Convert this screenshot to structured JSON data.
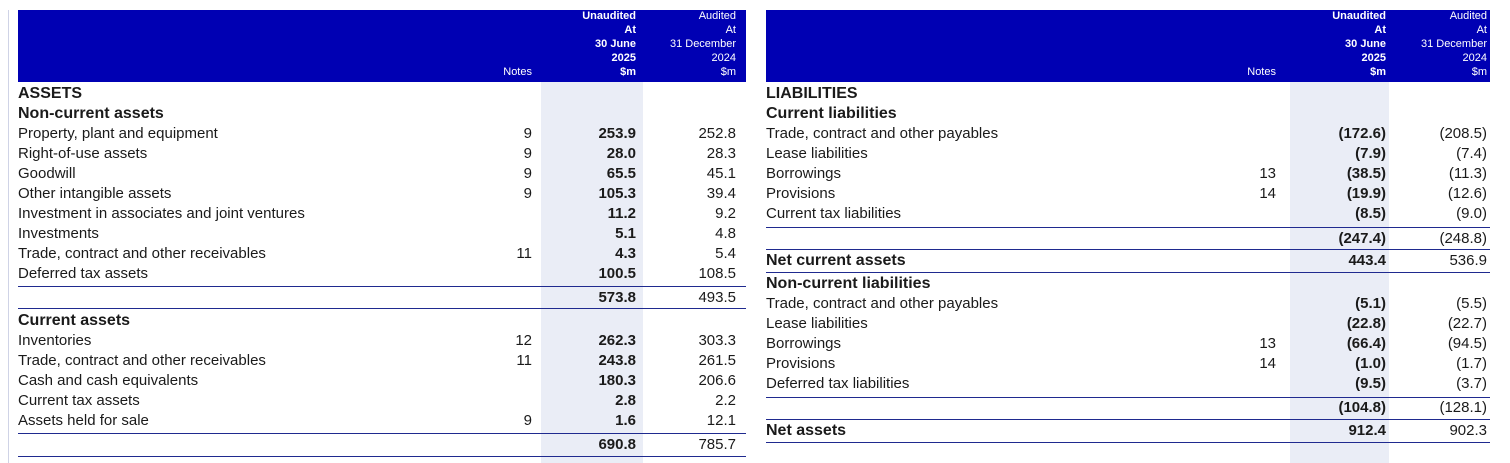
{
  "left": {
    "header": {
      "notes": "Notes",
      "current": "Unaudited\nAt\n30 June\n2025\n$m",
      "prior": "Audited\nAt\n31 December\n2024\n$m"
    },
    "section_title": "ASSETS",
    "non_current": {
      "title": "Non-current assets",
      "rows": [
        {
          "label": "Property, plant and equipment",
          "note": "9",
          "current": "253.9",
          "prior": "252.8"
        },
        {
          "label": "Right-of-use assets",
          "note": "9",
          "current": "28.0",
          "prior": "28.3"
        },
        {
          "label": "Goodwill",
          "note": "9",
          "current": "65.5",
          "prior": "45.1"
        },
        {
          "label": "Other intangible assets",
          "note": "9",
          "current": "105.3",
          "prior": "39.4"
        },
        {
          "label": "Investment in associates and joint ventures",
          "note": "",
          "current": "11.2",
          "prior": "9.2"
        },
        {
          "label": "Investments",
          "note": "",
          "current": "5.1",
          "prior": "4.8"
        },
        {
          "label": "Trade, contract and other receivables",
          "note": "11",
          "current": "4.3",
          "prior": "5.4"
        },
        {
          "label": "Deferred tax assets",
          "note": "",
          "current": "100.5",
          "prior": "108.5"
        }
      ],
      "total": {
        "current": "573.8",
        "prior": "493.5"
      }
    },
    "current_assets": {
      "title": "Current assets",
      "rows": [
        {
          "label": "Inventories",
          "note": "12",
          "current": "262.3",
          "prior": "303.3"
        },
        {
          "label": "Trade, contract and other receivables",
          "note": "11",
          "current": "243.8",
          "prior": "261.5"
        },
        {
          "label": "Cash and cash equivalents",
          "note": "",
          "current": "180.3",
          "prior": "206.6"
        },
        {
          "label": "Current tax assets",
          "note": "",
          "current": "2.8",
          "prior": "2.2"
        },
        {
          "label": "Assets held for sale",
          "note": "9",
          "current": "1.6",
          "prior": "12.1"
        }
      ],
      "total": {
        "current": "690.8",
        "prior": "785.7"
      }
    }
  },
  "right": {
    "header": {
      "notes": "Notes",
      "current": "Unaudited\nAt\n30 June\n2025\n$m",
      "prior": "Audited\nAt\n31 December\n2024\n$m"
    },
    "section_title": "LIABILITIES",
    "current_liabilities": {
      "title": "Current liabilities",
      "rows": [
        {
          "label": "Trade, contract and other payables",
          "note": "",
          "current": "(172.6)",
          "prior": "(208.5)"
        },
        {
          "label": "Lease liabilities",
          "note": "",
          "current": "(7.9)",
          "prior": "(7.4)"
        },
        {
          "label": "Borrowings",
          "note": "13",
          "current": "(38.5)",
          "prior": "(11.3)"
        },
        {
          "label": "Provisions",
          "note": "14",
          "current": "(19.9)",
          "prior": "(12.6)"
        },
        {
          "label": "Current tax liabilities",
          "note": "",
          "current": "(8.5)",
          "prior": "(9.0)"
        }
      ],
      "total": {
        "current": "(247.4)",
        "prior": "(248.8)"
      }
    },
    "net_current_assets": {
      "label": "Net current assets",
      "current": "443.4",
      "prior": "536.9"
    },
    "non_current_liabilities": {
      "title": "Non-current liabilities",
      "rows": [
        {
          "label": "Trade, contract and other payables",
          "note": "",
          "current": "(5.1)",
          "prior": "(5.5)"
        },
        {
          "label": "Lease liabilities",
          "note": "",
          "current": "(22.8)",
          "prior": "(22.7)"
        },
        {
          "label": "Borrowings",
          "note": "13",
          "current": "(66.4)",
          "prior": "(94.5)"
        },
        {
          "label": "Provisions",
          "note": "14",
          "current": "(1.0)",
          "prior": "(1.7)"
        },
        {
          "label": "Deferred tax liabilities",
          "note": "",
          "current": "(9.5)",
          "prior": "(3.7)"
        }
      ],
      "total": {
        "current": "(104.8)",
        "prior": "(128.1)"
      }
    },
    "net_assets": {
      "label": "Net assets",
      "current": "912.4",
      "prior": "902.3"
    }
  }
}
